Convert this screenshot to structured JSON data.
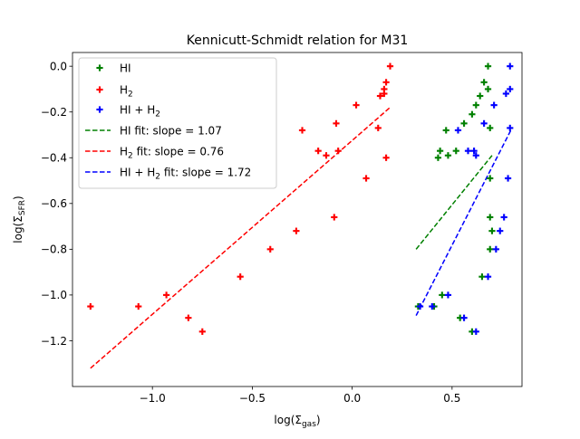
{
  "chart_data": {
    "type": "scatter",
    "title": "Kennicutt-Schmidt relation for M31",
    "xlabel": "log(Σ_gas)",
    "xlabel_main": "log(Σ",
    "xlabel_sub": "gas",
    "xlabel_close": ")",
    "ylabel": "log(Σ_SFR)",
    "ylabel_main": "log(Σ",
    "ylabel_sub": "SFR",
    "ylabel_close": ")",
    "xlim": [
      -1.4,
      0.85
    ],
    "ylim": [
      -1.4,
      0.06
    ],
    "xticks": [
      {
        "value": -1.0,
        "label": "−1.0"
      },
      {
        "value": -0.5,
        "label": "−0.5"
      },
      {
        "value": 0.0,
        "label": "0.0"
      },
      {
        "value": 0.5,
        "label": "0.5"
      }
    ],
    "yticks": [
      {
        "value": 0.0,
        "label": "0.0"
      },
      {
        "value": -0.2,
        "label": "−0.2"
      },
      {
        "value": -0.4,
        "label": "−0.4"
      },
      {
        "value": -0.6,
        "label": "−0.6"
      },
      {
        "value": -0.8,
        "label": "−0.8"
      },
      {
        "value": -1.0,
        "label": "−1.0"
      },
      {
        "value": -1.2,
        "label": "−1.2"
      }
    ],
    "grid": false,
    "legend_position": "top-left",
    "series": [
      {
        "name": "HI",
        "legend_main": "HI",
        "legend_sub": "",
        "color": "#008000",
        "marker": "plus",
        "x": [
          0.68,
          0.66,
          0.68,
          0.64,
          0.62,
          0.6,
          0.56,
          0.47,
          0.69,
          0.52,
          0.44,
          0.48,
          0.43,
          0.69,
          0.69,
          0.7,
          0.69,
          0.65,
          0.45,
          0.33,
          0.41,
          0.54,
          0.6
        ],
        "y": [
          0.0,
          -0.07,
          -0.1,
          -0.13,
          -0.17,
          -0.21,
          -0.25,
          -0.28,
          -0.27,
          -0.37,
          -0.37,
          -0.39,
          -0.4,
          -0.49,
          -0.66,
          -0.72,
          -0.8,
          -0.92,
          -1.0,
          -1.05,
          -1.05,
          -1.1,
          -1.16
        ]
      },
      {
        "name": "H₂",
        "legend_main": "H",
        "legend_sub": "2",
        "color": "#ff0000",
        "marker": "plus",
        "x": [
          0.19,
          0.17,
          0.16,
          0.16,
          0.14,
          0.02,
          -0.08,
          -0.25,
          -0.17,
          -0.13,
          -0.07,
          0.13,
          0.17,
          0.07,
          -0.09,
          -0.28,
          -0.41,
          -0.56,
          -0.93,
          -1.07,
          -0.82,
          -0.75,
          -1.31
        ],
        "y": [
          0.0,
          -0.07,
          -0.1,
          -0.12,
          -0.13,
          -0.17,
          -0.25,
          -0.28,
          -0.37,
          -0.39,
          -0.37,
          -0.27,
          -0.4,
          -0.49,
          -0.66,
          -0.72,
          -0.8,
          -0.92,
          -1.0,
          -1.05,
          -1.1,
          -1.16,
          -1.05
        ]
      },
      {
        "name": "HI + H₂",
        "legend_main": "HI + H",
        "legend_sub": "2",
        "color": "#0000ff",
        "marker": "plus",
        "x": [
          0.79,
          0.79,
          0.77,
          0.71,
          0.66,
          0.79,
          0.53,
          0.58,
          0.61,
          0.62,
          0.78,
          0.76,
          0.74,
          0.72,
          0.68,
          0.48,
          0.34,
          0.4,
          0.56,
          0.62
        ],
        "y": [
          0.0,
          -0.1,
          -0.12,
          -0.17,
          -0.25,
          -0.27,
          -0.28,
          -0.37,
          -0.37,
          -0.39,
          -0.49,
          -0.66,
          -0.72,
          -0.8,
          -0.92,
          -1.0,
          -1.05,
          -1.05,
          -1.1,
          -1.16
        ]
      }
    ],
    "fits": [
      {
        "name": "HI fit: slope = 1.07",
        "legend_main": "HI fit: slope = 1.07",
        "legend_sub": "",
        "legend_tail": "",
        "color": "#008000",
        "style": "dashed",
        "x": [
          0.32,
          0.7
        ],
        "y": [
          -0.8,
          -0.39
        ]
      },
      {
        "name": "H₂ fit: slope = 0.76",
        "legend_main": "H",
        "legend_sub": "2",
        "legend_tail": " fit: slope = 0.76",
        "color": "#ff0000",
        "style": "dashed",
        "x": [
          -1.31,
          0.19
        ],
        "y": [
          -1.32,
          -0.18
        ]
      },
      {
        "name": "HI + H₂ fit: slope = 1.72",
        "legend_main": "HI + H",
        "legend_sub": "2",
        "legend_tail": " fit: slope = 1.72",
        "color": "#0000ff",
        "style": "dashed",
        "x": [
          0.32,
          0.8
        ],
        "y": [
          -1.09,
          -0.27
        ]
      }
    ]
  }
}
